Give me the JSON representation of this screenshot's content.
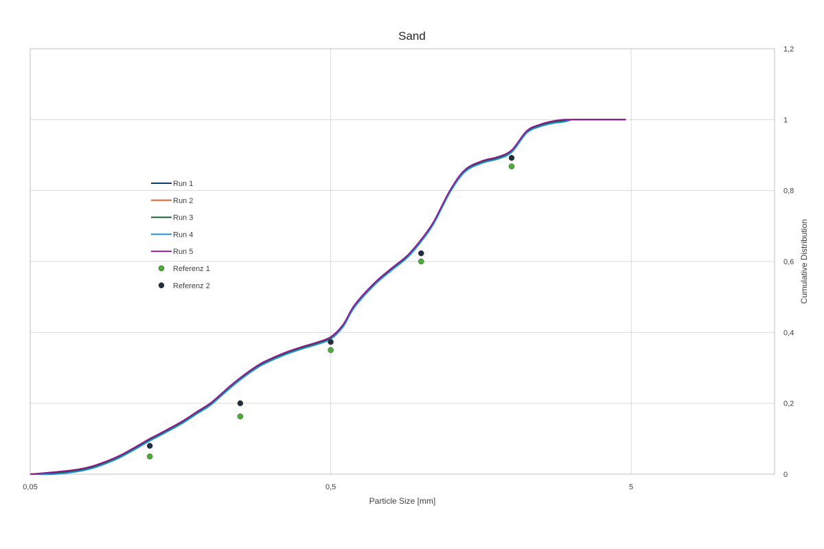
{
  "chart_data": {
    "type": "line",
    "title": "Sand",
    "xlabel": "Particle Size [mm]",
    "ylabel": "Cumulative Distribution",
    "x_scale": "log",
    "xlim": [
      0.05,
      15
    ],
    "ylim": [
      0,
      1.2
    ],
    "x_ticks": [
      {
        "value": 0.05,
        "label": "0,05"
      },
      {
        "value": 0.5,
        "label": "0,5"
      },
      {
        "value": 5,
        "label": "5"
      }
    ],
    "y_ticks": [
      {
        "value": 0,
        "label": "0"
      },
      {
        "value": 0.2,
        "label": "0,2"
      },
      {
        "value": 0.4,
        "label": "0,4"
      },
      {
        "value": 0.6,
        "label": "0,6"
      },
      {
        "value": 0.8,
        "label": "0,8"
      },
      {
        "value": 1,
        "label": "1"
      },
      {
        "value": 1.2,
        "label": "1,2"
      }
    ],
    "grid": true,
    "legend_position": "left",
    "base_curve": {
      "x": [
        0.05,
        0.06,
        0.07,
        0.08,
        0.09,
        0.1,
        0.11,
        0.125,
        0.14,
        0.16,
        0.18,
        0.2,
        0.23,
        0.25,
        0.28,
        0.3,
        0.35,
        0.4,
        0.45,
        0.5,
        0.55,
        0.6,
        0.7,
        0.8,
        0.9,
        1.0,
        1.1,
        1.25,
        1.4,
        1.6,
        1.8,
        2.0,
        2.25,
        2.5,
        2.75,
        3.0,
        3.2,
        3.5,
        4.0,
        4.5,
        4.8
      ],
      "y": [
        0.0,
        0.004,
        0.01,
        0.02,
        0.035,
        0.052,
        0.071,
        0.098,
        0.12,
        0.147,
        0.175,
        0.2,
        0.245,
        0.27,
        0.3,
        0.315,
        0.34,
        0.357,
        0.37,
        0.385,
        0.42,
        0.475,
        0.538,
        0.58,
        0.615,
        0.66,
        0.71,
        0.8,
        0.857,
        0.882,
        0.893,
        0.912,
        0.967,
        0.985,
        0.994,
        0.998,
        1.0,
        1.0,
        1.0,
        1.0,
        1.0
      ]
    },
    "series": [
      {
        "name": "Run 1",
        "color": "#0d3b66",
        "offset": 0.0
      },
      {
        "name": "Run 2",
        "color": "#e5642b",
        "offset": -0.002
      },
      {
        "name": "Run 3",
        "color": "#1d5e2b",
        "offset": -0.001
      },
      {
        "name": "Run 4",
        "color": "#1e90d8",
        "offset": -0.004
      },
      {
        "name": "Run 5",
        "color": "#8e1a8e",
        "offset": 0.002
      }
    ],
    "scatter": [
      {
        "name": "Referenz 1",
        "color": "#4caf35",
        "x": [
          0.125,
          0.25,
          0.5,
          1.0,
          2.0
        ],
        "y": [
          0.05,
          0.163,
          0.35,
          0.6,
          0.868
        ]
      },
      {
        "name": "Referenz 2",
        "color": "#1f2f40",
        "x": [
          0.125,
          0.25,
          0.5,
          1.0,
          2.0
        ],
        "y": [
          0.08,
          0.2,
          0.373,
          0.623,
          0.892
        ]
      }
    ]
  }
}
